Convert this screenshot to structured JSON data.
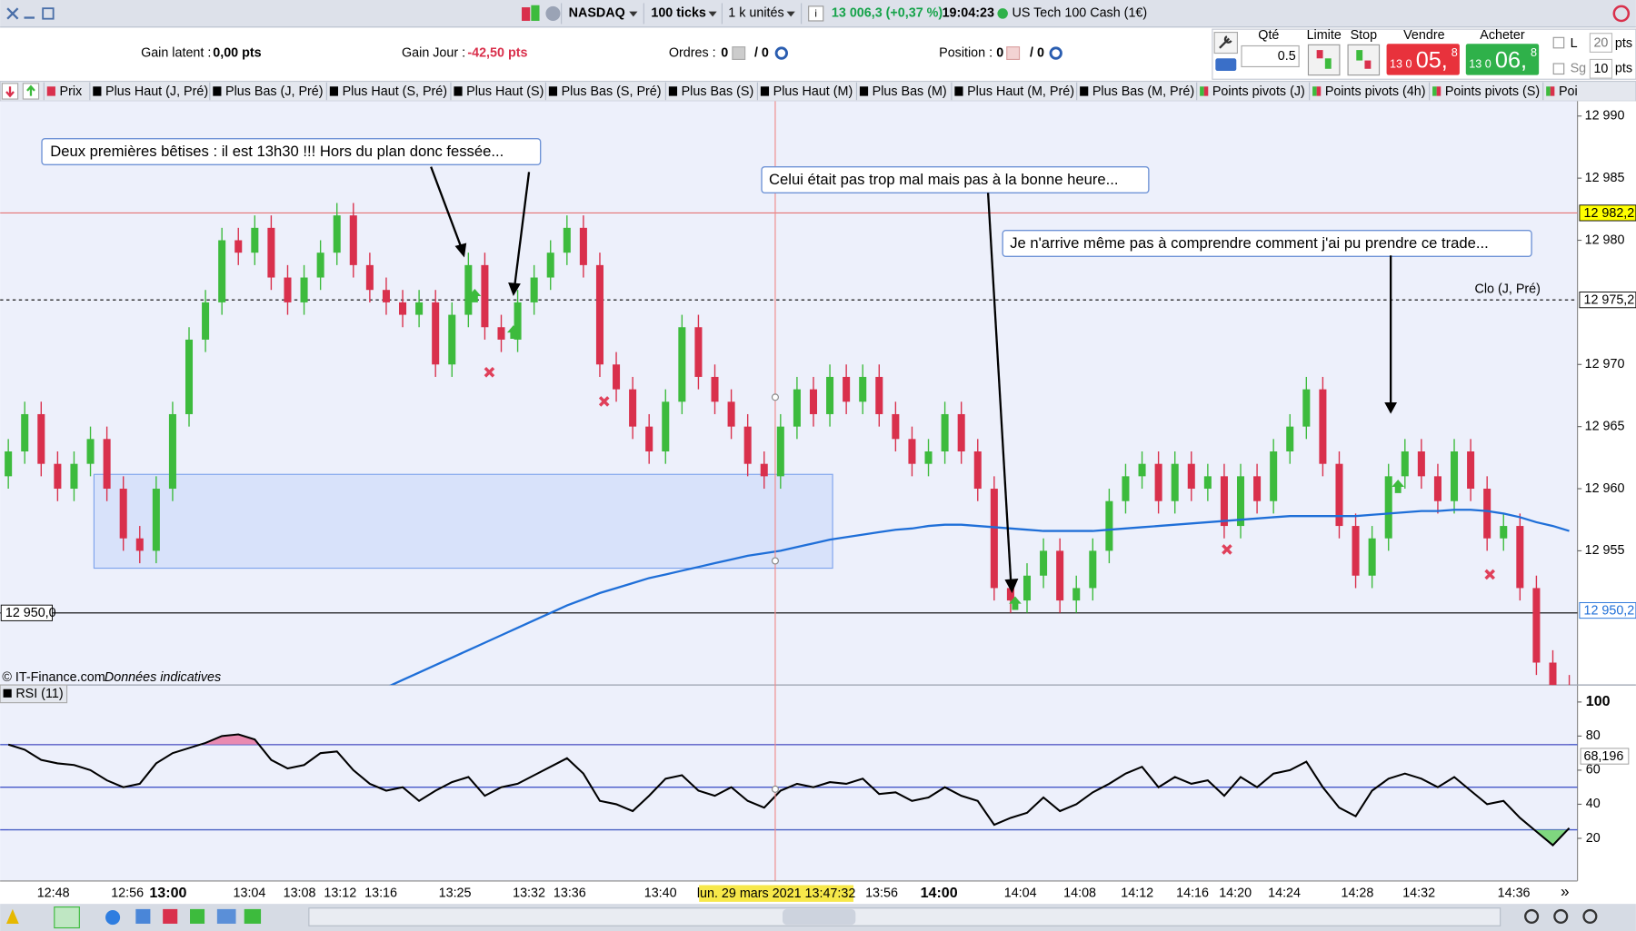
{
  "toolbar": {
    "market": "NASDAQ",
    "ticks": "100 ticks",
    "units": "1 k unités",
    "quote": "13 006,3 (+0,37 %)",
    "time": "19:04:23",
    "instrument": "US Tech 100 Cash (1€)"
  },
  "summary": {
    "gain_latent_label": "Gain latent :",
    "gain_latent": "0,00 pts",
    "gain_jour_label": "Gain Jour :",
    "gain_jour": "-42,50 pts",
    "ordres_label": "Ordres :",
    "ordres": "0",
    "ordres_total": "/ 0",
    "position_label": "Position :",
    "position": "0",
    "position_total": "/ 0"
  },
  "order_panel": {
    "qte_label": "Qté",
    "qte": "0.5",
    "limite": "Limite",
    "stop": "Stop",
    "vendre": "Vendre",
    "sell_prefix": "13 0",
    "sell_main": "05,",
    "sell_sup": "8",
    "acheter": "Acheter",
    "buy_prefix": "13 0",
    "buy_main": "06,",
    "buy_sup": "8",
    "l": "L",
    "l_value": "20",
    "l_unit": "pts",
    "sg": "Sg",
    "sg_value": "10",
    "sg_unit": "pts"
  },
  "indicator_tabs": [
    "Prix",
    "Plus Haut (J, Pré)",
    "Plus Bas (J, Pré)",
    "Plus Haut (S, Pré)",
    "Plus Haut (S)",
    "Plus Bas (S, Pré)",
    "Plus Bas (S)",
    "Plus Haut (M)",
    "Plus Bas (M)",
    "Plus Haut (M, Pré)",
    "Plus Bas (M, Pré)",
    "Points pivots (J)",
    "Points pivots (4h)",
    "Points pivots (S)",
    "Poi"
  ],
  "footer": {
    "copyright": "© IT-Finance.com",
    "disclaimer": "Données indicatives"
  },
  "annotations": [
    "Deux premières bêtises : il est 13h30 !!! Hors du plan donc fessée...",
    "Celui était pas trop mal mais pas à la bonne heure...",
    "Je n'arrive même pas à comprendre comment j'ai pu prendre ce trade..."
  ],
  "chart_data": [
    {
      "type": "candlestick",
      "up_color": "#3dbb3d",
      "down_color": "#d9304c",
      "x_labels": [
        "12:48",
        "12:56",
        "13:00",
        "13:04",
        "13:08",
        "13:12",
        "13:16",
        "13:25",
        "13:32",
        "13:36",
        "13:40",
        "13:56",
        "14:00",
        "14:04",
        "14:08",
        "14:12",
        "14:16",
        "14:20",
        "14:24",
        "14:28",
        "14:32",
        "14:36"
      ],
      "cursor_label": "lun. 29 mars 2021 13:47:32",
      "ylim": [
        12944.2,
        12991.2
      ],
      "yticks": [
        {
          "value": 12990,
          "label": "12 990"
        },
        {
          "value": 12985,
          "label": "12 985"
        },
        {
          "value": 12980,
          "label": "12 980"
        },
        {
          "value": 12970,
          "label": "12 970"
        },
        {
          "value": 12965,
          "label": "12 965"
        },
        {
          "value": 12960,
          "label": "12 960"
        },
        {
          "value": 12955,
          "label": "12 955"
        }
      ],
      "levels": [
        {
          "value": 12982.2,
          "label": "12 982,2",
          "color": "#e57373",
          "label_bg": "#ffff00",
          "side": "right"
        },
        {
          "value": 12975.2,
          "label": "12 975,2",
          "name": "Clo (J, Pré)",
          "color": "#000000",
          "dashed": true,
          "label_bg": "#ffffff",
          "side": "right"
        },
        {
          "value": 12950.2,
          "label": "12 950,2",
          "label_color": "#1f6fd8",
          "label_bg": "#ffffff",
          "side": "right"
        },
        {
          "value": 12950,
          "label": "12 950,0",
          "color": "#000000",
          "label_bg": "#ffffff",
          "side": "left"
        }
      ],
      "open": [
        12961,
        12963,
        12966,
        12962,
        12960,
        12962,
        12964,
        12960,
        12956,
        12955,
        12960,
        12966,
        12972,
        12975,
        12980,
        12979,
        12981,
        12977,
        12975,
        12977,
        12979,
        12982,
        12978,
        12976,
        12975,
        12974,
        12975,
        12970,
        12974,
        12978,
        12973,
        12972,
        12975,
        12977,
        12979,
        12981,
        12978,
        12970,
        12968,
        12965,
        12963,
        12967,
        12973,
        12969,
        12967,
        12965,
        12962,
        12961,
        12965,
        12968,
        12966,
        12969,
        12967,
        12969,
        12966,
        12964,
        12962,
        12963,
        12966,
        12963,
        12960,
        12952,
        12951,
        12953,
        12955,
        12951,
        12952,
        12955,
        12959,
        12961,
        12962,
        12959,
        12962,
        12960,
        12961,
        12957,
        12961,
        12959,
        12963,
        12965,
        12968,
        12962,
        12957,
        12953,
        12956,
        12961,
        12963,
        12961,
        12959,
        12963,
        12960,
        12956,
        12957,
        12952,
        12946,
        12944
      ],
      "high": [
        12964,
        12967,
        12967,
        12963,
        12963,
        12965,
        12965,
        12961,
        12957,
        12961,
        12967,
        12973,
        12976,
        12981,
        12981,
        12982,
        12982,
        12978,
        12978,
        12980,
        12983,
        12983,
        12979,
        12977,
        12976,
        12976,
        12976,
        12975,
        12979,
        12979,
        12974,
        12976,
        12978,
        12980,
        12982,
        12982,
        12979,
        12971,
        12969,
        12966,
        12968,
        12974,
        12974,
        12970,
        12968,
        12966,
        12963,
        12966,
        12969,
        12969,
        12970,
        12970,
        12970,
        12970,
        12967,
        12965,
        12964,
        12967,
        12967,
        12964,
        12961,
        12953,
        12954,
        12956,
        12956,
        12953,
        12956,
        12960,
        12962,
        12963,
        12963,
        12963,
        12963,
        12962,
        12962,
        12962,
        12962,
        12964,
        12966,
        12969,
        12969,
        12963,
        12958,
        12957,
        12962,
        12964,
        12964,
        12962,
        12964,
        12964,
        12961,
        12958,
        12958,
        12953,
        12947,
        12945
      ],
      "low": [
        12960,
        12962,
        12961,
        12959,
        12959,
        12961,
        12959,
        12955,
        12954,
        12954,
        12959,
        12965,
        12971,
        12974,
        12978,
        12978,
        12976,
        12974,
        12974,
        12976,
        12978,
        12977,
        12975,
        12974,
        12973,
        12973,
        12969,
        12969,
        12973,
        12972,
        12971,
        12971,
        12974,
        12976,
        12978,
        12977,
        12969,
        12967,
        12964,
        12962,
        12962,
        12966,
        12968,
        12966,
        12964,
        12961,
        12960,
        12960,
        12964,
        12965,
        12965,
        12966,
        12966,
        12965,
        12963,
        12961,
        12961,
        12962,
        12962,
        12959,
        12951,
        12950,
        12950,
        12952,
        12950,
        12950,
        12951,
        12954,
        12958,
        12960,
        12958,
        12958,
        12959,
        12959,
        12956,
        12956,
        12958,
        12958,
        12962,
        12964,
        12961,
        12956,
        12952,
        12952,
        12955,
        12960,
        12960,
        12958,
        12958,
        12959,
        12955,
        12955,
        12951,
        12945,
        12943,
        12942
      ],
      "close": [
        12963,
        12966,
        12962,
        12960,
        12962,
        12964,
        12960,
        12956,
        12955,
        12960,
        12966,
        12972,
        12975,
        12980,
        12979,
        12981,
        12977,
        12975,
        12977,
        12979,
        12982,
        12978,
        12976,
        12975,
        12974,
        12975,
        12970,
        12974,
        12978,
        12973,
        12972,
        12975,
        12977,
        12979,
        12981,
        12978,
        12970,
        12968,
        12965,
        12963,
        12967,
        12973,
        12969,
        12967,
        12965,
        12962,
        12961,
        12965,
        12968,
        12966,
        12969,
        12967,
        12969,
        12966,
        12964,
        12962,
        12963,
        12966,
        12963,
        12960,
        12952,
        12951,
        12953,
        12955,
        12951,
        12952,
        12955,
        12959,
        12961,
        12962,
        12959,
        12962,
        12960,
        12961,
        12957,
        12961,
        12959,
        12963,
        12965,
        12968,
        12962,
        12957,
        12953,
        12956,
        12961,
        12963,
        12961,
        12959,
        12963,
        12960,
        12956,
        12957,
        12952,
        12946,
        12944,
        12943
      ],
      "ma": {
        "color": "#1f6fd8",
        "values": [
          null,
          null,
          null,
          null,
          null,
          null,
          null,
          null,
          null,
          null,
          null,
          null,
          null,
          null,
          null,
          null,
          null,
          null,
          null,
          null,
          null,
          null,
          null,
          12944.0,
          12944.6,
          12945.2,
          12945.8,
          12946.4,
          12947.0,
          12947.6,
          12948.2,
          12948.8,
          12949.4,
          12950.0,
          12950.6,
          12951.1,
          12951.6,
          12952.0,
          12952.4,
          12952.8,
          12953.1,
          12953.4,
          12953.7,
          12954.0,
          12954.3,
          12954.6,
          12954.8,
          12955.0,
          12955.3,
          12955.6,
          12955.9,
          12956.1,
          12956.3,
          12956.5,
          12956.7,
          12956.8,
          12957.0,
          12957.1,
          12957.1,
          12957.0,
          12956.9,
          12956.8,
          12956.7,
          12956.6,
          12956.6,
          12956.6,
          12956.6,
          12956.7,
          12956.8,
          12956.9,
          12957.0,
          12957.1,
          12957.2,
          12957.3,
          12957.4,
          12957.5,
          12957.6,
          12957.7,
          12957.8,
          12957.8,
          12957.8,
          12957.8,
          12957.8,
          12957.9,
          12958.0,
          12958.1,
          12958.2,
          12958.2,
          12958.3,
          12958.3,
          12958.2,
          12958.0,
          12957.7,
          12957.3,
          12957.0,
          12956.6
        ]
      }
    },
    {
      "type": "line",
      "title": "RSI (11)",
      "color": "#000000",
      "level_color": "#4657c9",
      "overbought_color": "#e98ab0",
      "oversold_color": "#7fd77f",
      "ylim": [
        -5,
        110
      ],
      "yticks": [
        20,
        40,
        60,
        80,
        100
      ],
      "levels": [
        75,
        50,
        25
      ],
      "marker": {
        "value": 68.196,
        "label": "68,196"
      },
      "values": [
        75,
        72,
        66,
        64,
        63,
        60,
        54,
        50,
        52,
        64,
        70,
        73,
        76,
        80,
        81,
        78,
        66,
        61,
        63,
        70,
        71,
        60,
        52,
        48,
        50,
        42,
        48,
        53,
        56,
        45,
        50,
        52,
        57,
        62,
        67,
        58,
        42,
        40,
        36,
        45,
        55,
        57,
        48,
        45,
        50,
        42,
        38,
        48,
        52,
        50,
        53,
        52,
        55,
        46,
        47,
        42,
        44,
        50,
        45,
        42,
        28,
        32,
        35,
        44,
        36,
        40,
        47,
        52,
        58,
        62,
        50,
        56,
        52,
        54,
        45,
        56,
        50,
        58,
        60,
        65,
        50,
        38,
        33,
        48,
        55,
        58,
        55,
        50,
        56,
        48,
        40,
        42,
        32,
        24,
        16,
        26
      ]
    }
  ]
}
